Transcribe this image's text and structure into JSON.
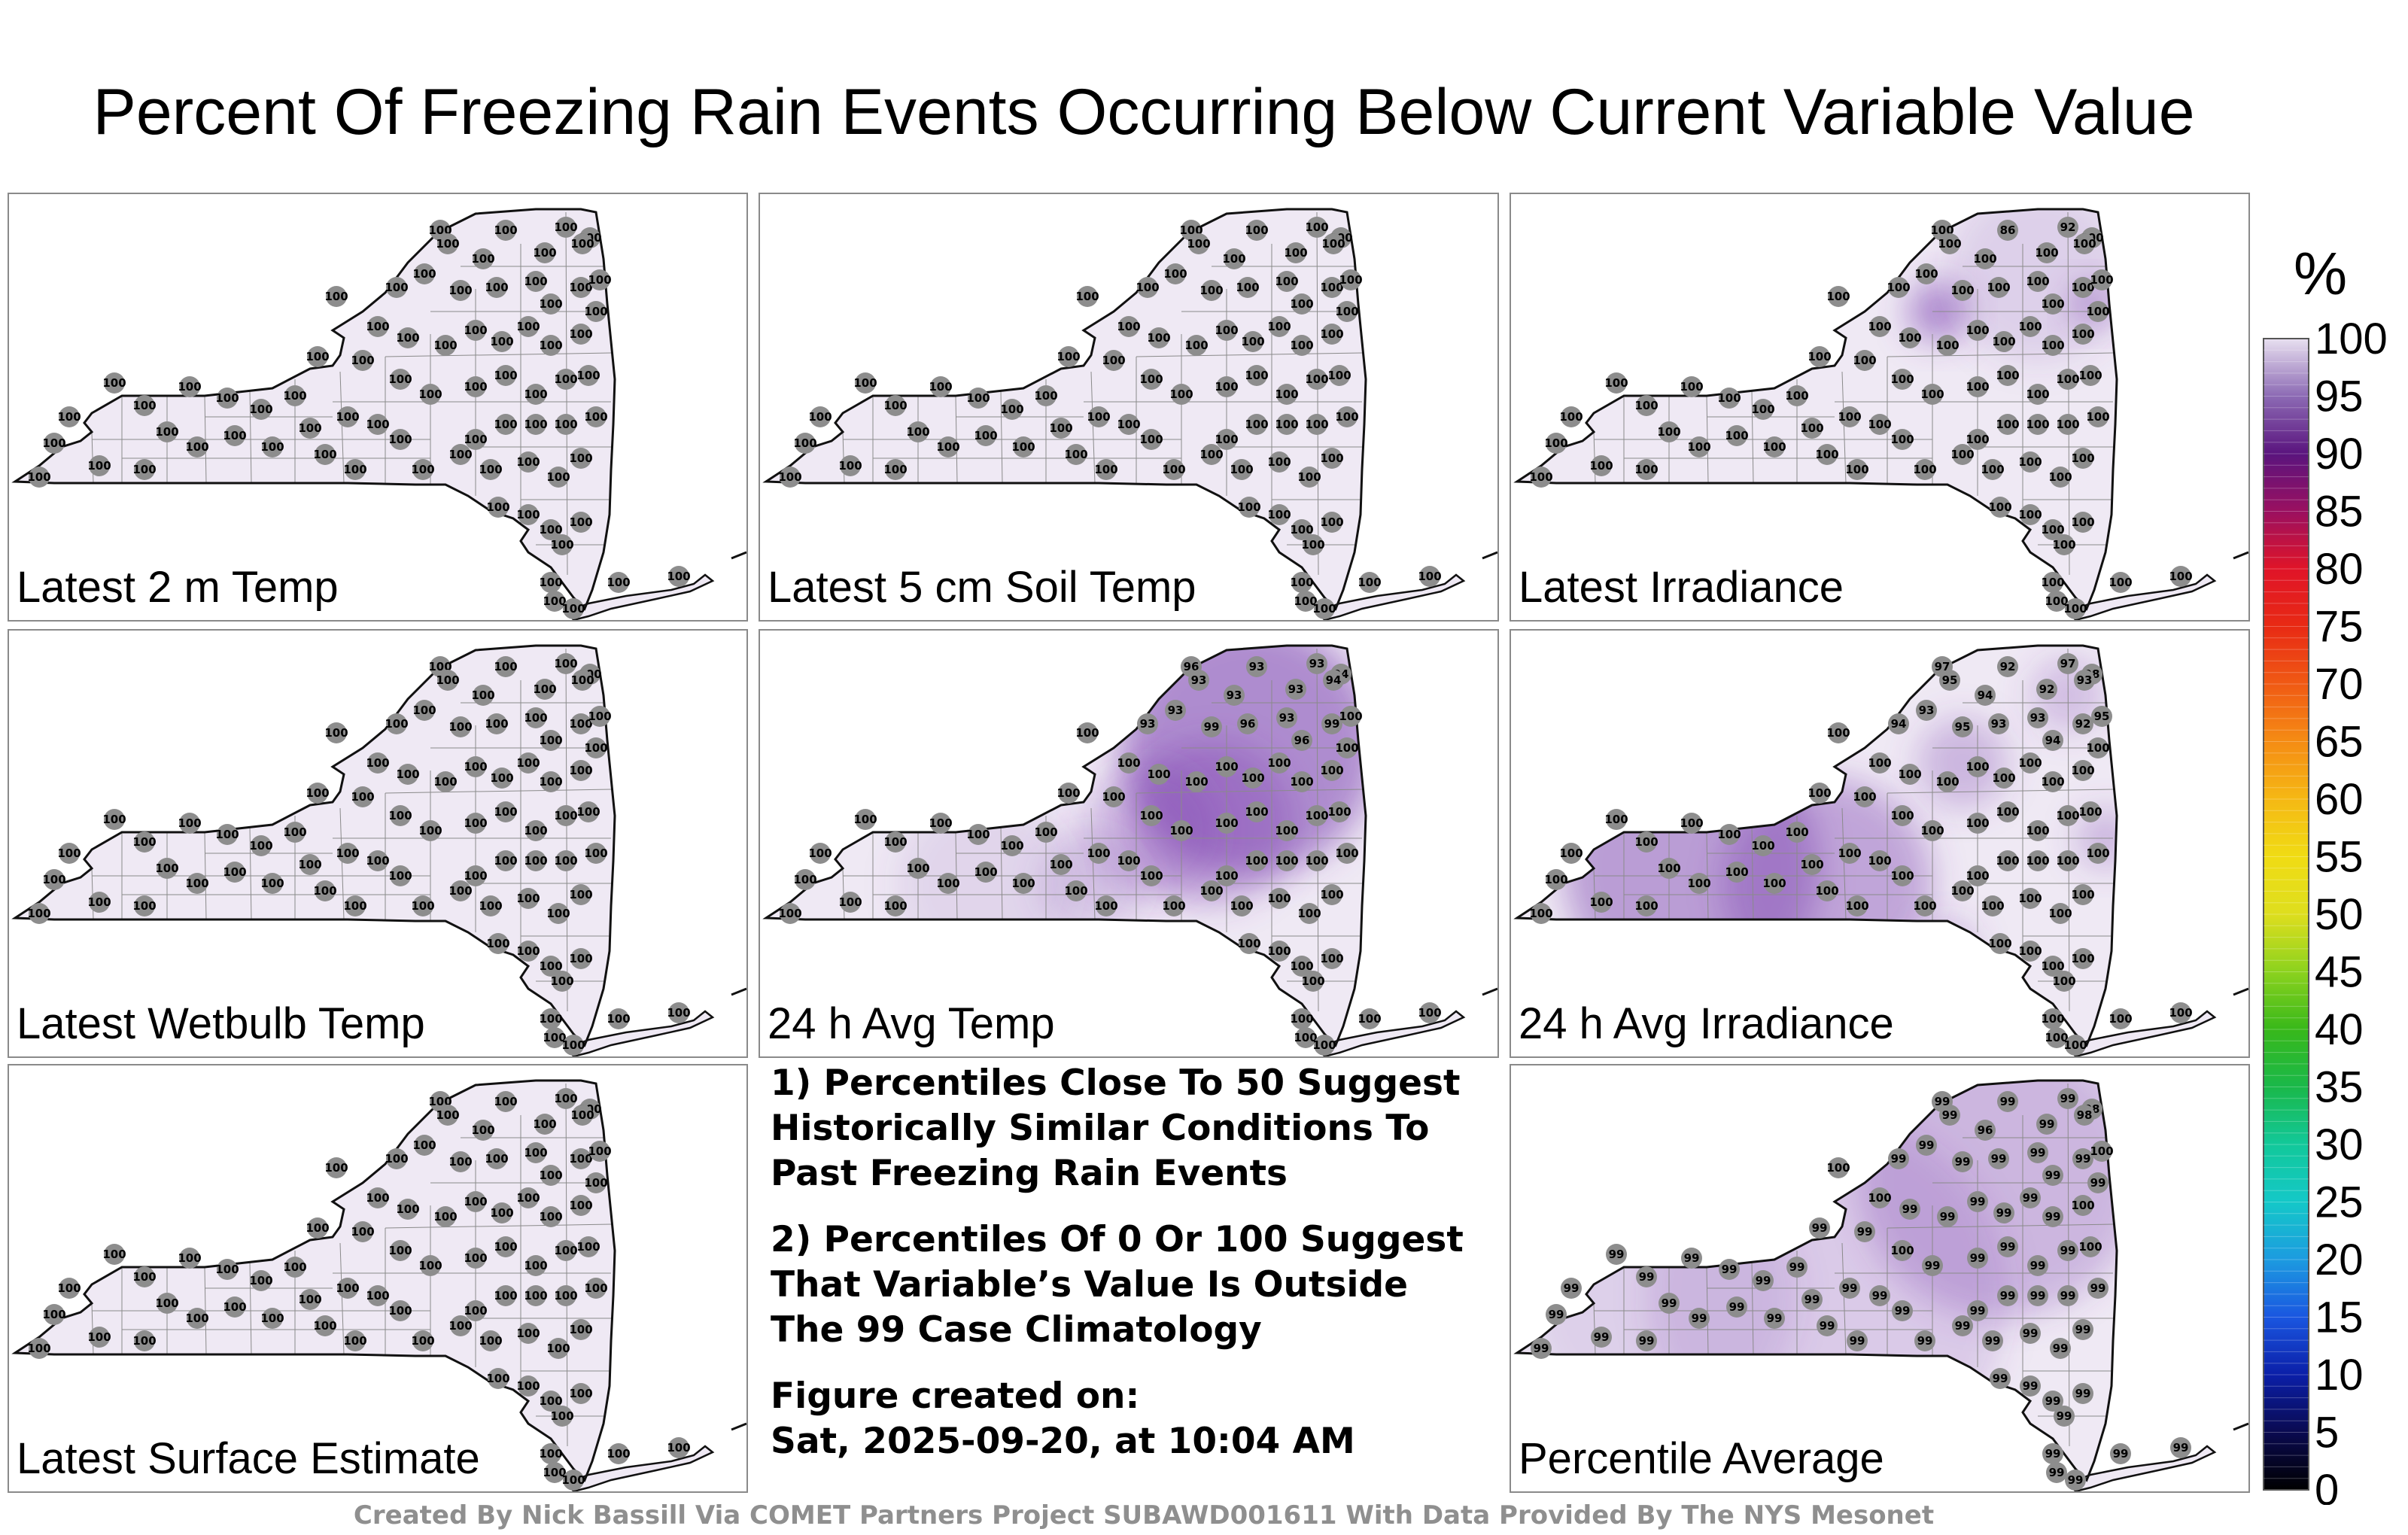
{
  "title": "Percent Of Freezing Rain Events Occurring Below Current Variable Value",
  "colorbar": {
    "unit": "%",
    "ticks": [
      "100",
      "95",
      "90",
      "85",
      "80",
      "75",
      "70",
      "65",
      "60",
      "55",
      "50",
      "45",
      "40",
      "35",
      "30",
      "25",
      "20",
      "15",
      "10",
      "5",
      "0"
    ],
    "colors": [
      "#000000",
      "#0a0a50",
      "#0b1fa8",
      "#1a56e0",
      "#1c9be0",
      "#14c8c8",
      "#12c89a",
      "#1ab84a",
      "#38b81a",
      "#8cd21e",
      "#dede1e",
      "#f0dc14",
      "#f5b814",
      "#f58c14",
      "#f05a14",
      "#e82a14",
      "#e01428",
      "#9a1060",
      "#5a147e",
      "#8c6ab4",
      "#e8e0f0"
    ]
  },
  "panels": [
    {
      "label": "Latest 2 m Temp",
      "values": [
        "100",
        "100",
        "100",
        "100",
        "100",
        "100",
        "100",
        "100",
        "100",
        "100",
        "100",
        "100",
        "100",
        "100",
        "100",
        "100",
        "100",
        "100",
        "100",
        "100",
        "100",
        "100",
        "100",
        "100",
        "100",
        "100",
        "100",
        "100",
        "100",
        "100",
        "100",
        "100",
        "100",
        "100",
        "100",
        "100"
      ]
    },
    {
      "label": "Latest 5 cm Soil Temp",
      "values": [
        "100",
        "100",
        "100",
        "100",
        "100",
        "100",
        "100",
        "100",
        "100",
        "100",
        "100",
        "100",
        "100",
        "100",
        "100",
        "100",
        "100",
        "100",
        "100",
        "100",
        "100",
        "100",
        "100",
        "100",
        "100",
        "100",
        "100",
        "100",
        "100",
        "100",
        "100",
        "100",
        "100",
        "100",
        "100",
        "100"
      ]
    },
    {
      "label": "Latest Irradiance",
      "values": [
        "100",
        "86",
        "92",
        "100",
        "100",
        "100",
        "100",
        "100",
        "100",
        "100",
        "100",
        "100",
        "100",
        "100",
        "100",
        "100",
        "100",
        "100",
        "100",
        "100",
        "100",
        "100",
        "100",
        "100",
        "100",
        "100",
        "100",
        "100",
        "100",
        "100",
        "100",
        "100",
        "100",
        "100",
        "100",
        "100"
      ]
    },
    {
      "label": "Latest Wetbulb Temp",
      "values": [
        "100",
        "100",
        "100",
        "100",
        "100",
        "100",
        "100",
        "100",
        "100",
        "100",
        "100",
        "100",
        "100",
        "100",
        "100",
        "100",
        "100",
        "100",
        "100",
        "100",
        "100",
        "100",
        "100",
        "100",
        "100",
        "100",
        "100",
        "100",
        "100",
        "100",
        "100",
        "100",
        "100",
        "100",
        "100",
        "100"
      ]
    },
    {
      "label": "24 h Avg Temp",
      "values": [
        "96",
        "93",
        "93",
        "94",
        "93",
        "93",
        "93",
        "94",
        "93",
        "93",
        "99",
        "96",
        "93",
        "96",
        "99",
        "100",
        "100",
        "100",
        "100",
        "100",
        "100",
        "100",
        "100",
        "100",
        "100",
        "100",
        "100",
        "100",
        "100",
        "100",
        "100",
        "100",
        "100",
        "100",
        "100",
        "100"
      ]
    },
    {
      "label": "24 h Avg Irradiance",
      "values": [
        "97",
        "92",
        "97",
        "98",
        "95",
        "94",
        "92",
        "93",
        "93",
        "94",
        "95",
        "93",
        "93",
        "94",
        "92",
        "95",
        "100",
        "100",
        "100",
        "100",
        "100",
        "100",
        "100",
        "100",
        "100",
        "100",
        "100",
        "100",
        "100",
        "100",
        "100",
        "100",
        "100",
        "100",
        "100",
        "100"
      ]
    },
    {
      "label": "Latest Surface Estimate",
      "values": [
        "100",
        "100",
        "100",
        "100",
        "100",
        "100",
        "100",
        "100",
        "100",
        "100",
        "100",
        "100",
        "100",
        "100",
        "100",
        "100",
        "100",
        "100",
        "100",
        "100",
        "100",
        "100",
        "100",
        "100",
        "100",
        "100",
        "100",
        "100",
        "100",
        "100",
        "100",
        "100",
        "100",
        "100",
        "100",
        "100"
      ]
    },
    {
      "label": "Percentile Average",
      "values": [
        "99",
        "99",
        "99",
        "98",
        "99",
        "96",
        "99",
        "98",
        "99",
        "99",
        "99",
        "99",
        "99",
        "99",
        "99",
        "100",
        "100",
        "100",
        "99",
        "99",
        "99",
        "99",
        "99",
        "99",
        "100",
        "99",
        "99",
        "99",
        "100",
        "99",
        "99",
        "99",
        "99",
        "99",
        "100",
        "99"
      ]
    }
  ],
  "notes": [
    [
      "1) Percentiles Close To 50 Suggest",
      "Historically Similar Conditions To",
      "Past Freezing Rain Events"
    ],
    [
      "2) Percentiles Of 0 Or 100 Suggest",
      "That Variable’s Value Is Outside",
      "The 99 Case Climatology"
    ],
    [
      "Figure created on:",
      "Sat, 2025-09-20, at 10:04 AM"
    ]
  ],
  "footer": "Created By Nick Bassill Via COMET Partners Project SUBAWD001611 With Data Provided By The NYS Mesonet"
}
